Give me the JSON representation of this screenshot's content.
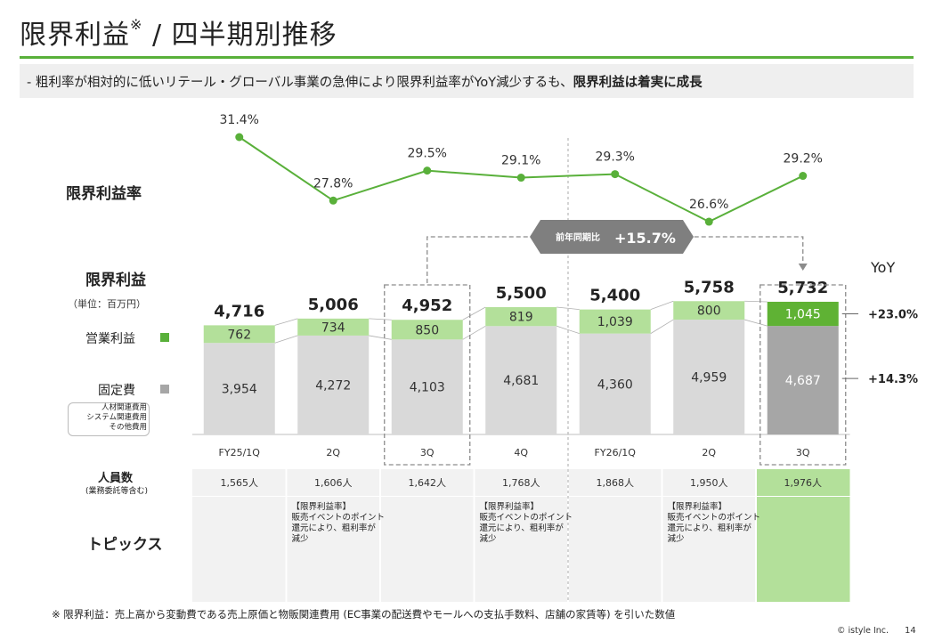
{
  "page": {
    "title": "限界利益",
    "title_note": "※",
    "title_rest": " / 四半期別推移",
    "subtitle_prefix": "-  粗利率が相対的に低いリテール・グローバル事業の急伸により限界利益率がYoY減少するも、",
    "subtitle_bold": "限界利益は着実に成長",
    "footnote": "※ 限界利益：売上高から変動費である売上原価と物販関連費用 (EC事業の配送費やモールへの支払手数料、店舗の家賃等) を引いた数値",
    "copyright": "© istyle Inc.",
    "page_number": "14"
  },
  "labels": {
    "margin_rate": "限界利益率",
    "marginal_profit": "限界利益",
    "unit": "（単位：百万円）",
    "operating_profit": "営業利益",
    "fixed_cost": "固定費",
    "fixed_cost_details": [
      "人材関連費用",
      "システム関連費用",
      "その他費用"
    ],
    "headcount": "人員数",
    "headcount_note": "(業務委託等含む)",
    "topics": "トピックス",
    "yoy": "YoY",
    "callout_prefix": "前年同期比",
    "callout_value": "+15.7%"
  },
  "colors": {
    "accent_green": "#59b03a",
    "light_green": "#b3e09a",
    "dark_green": "#5fb234",
    "bar_gray": "#d9d9d9",
    "bar_dark_gray": "#a6a6a6",
    "callout_gray": "#7f7f7f"
  },
  "chart_data": {
    "type": "bar",
    "stacked": true,
    "categories": [
      "FY25/1Q",
      "2Q",
      "3Q",
      "4Q",
      "FY26/1Q",
      "2Q",
      "3Q"
    ],
    "series": [
      {
        "name": "固定費",
        "values": [
          3954,
          4272,
          4103,
          4681,
          4360,
          4959,
          4687
        ]
      },
      {
        "name": "営業利益",
        "values": [
          762,
          734,
          850,
          819,
          1039,
          800,
          1045
        ]
      }
    ],
    "totals": [
      4716,
      5006,
      4952,
      5500,
      5400,
      5758,
      5732
    ],
    "total_labels": [
      "4,716",
      "5,006",
      "4,952",
      "5,500",
      "5,400",
      "5,758",
      "5,732"
    ],
    "fixed_labels": [
      "3,954",
      "4,272",
      "4,103",
      "4,681",
      "4,360",
      "4,959",
      "4,687"
    ],
    "op_labels": [
      "762",
      "734",
      "850",
      "819",
      "1,039",
      "800",
      "1,045"
    ],
    "margin_rate": {
      "type": "line",
      "values": [
        31.4,
        27.8,
        29.5,
        29.1,
        29.3,
        26.6,
        29.2
      ],
      "labels": [
        "31.4%",
        "27.8%",
        "29.5%",
        "29.1%",
        "29.3%",
        "26.6%",
        "29.2%"
      ]
    },
    "yoy": {
      "operating_profit": "+23.0%",
      "fixed_cost": "+14.3%"
    },
    "headcount": [
      "1,565人",
      "1,606人",
      "1,642人",
      "1,768人",
      "1,868人",
      "1,950人",
      "1,976人"
    ],
    "topics": [
      "",
      "【限界利益率】\n販売イベントのポイント\n還元により、粗利率が\n減少",
      "",
      "【限界利益率】\n販売イベントのポイント\n還元により、粗利率が\n減少",
      "",
      "【限界利益率】\n販売イベントのポイント\n還元により、粗利率が\n減少",
      ""
    ]
  }
}
